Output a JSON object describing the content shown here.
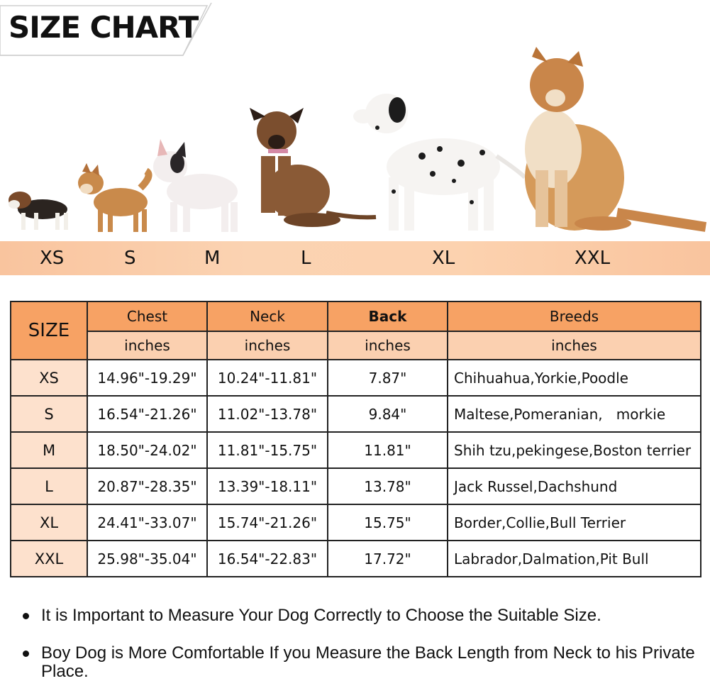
{
  "title": "SIZE CHART",
  "band_sizes": [
    "XS",
    "S",
    "M",
    "L",
    "XL",
    "XXL"
  ],
  "table": {
    "size_header": "SIZE",
    "columns": [
      {
        "label": "Chest",
        "unit": "inches"
      },
      {
        "label": "Neck",
        "unit": "inches"
      },
      {
        "label": "Back",
        "unit": "inches"
      },
      {
        "label": "Breeds",
        "unit": "inches"
      }
    ],
    "rows": [
      {
        "size": "XS",
        "chest": "14.96\"-19.29\"",
        "neck": "10.24\"-11.81\"",
        "back": "7.87\"",
        "breeds": "Chihuahua,Yorkie,Poodle"
      },
      {
        "size": "S",
        "chest": "16.54\"-21.26\"",
        "neck": "11.02\"-13.78\"",
        "back": "9.84\"",
        "breeds": "Maltese,Pomeranian,   morkie"
      },
      {
        "size": "M",
        "chest": "18.50\"-24.02\"",
        "neck": "11.81\"-15.75\"",
        "back": "11.81\"",
        "breeds": "Shih tzu,pekingese,Boston terrier"
      },
      {
        "size": "L",
        "chest": "20.87\"-28.35\"",
        "neck": "13.39\"-18.11\"",
        "back": "13.78\"",
        "breeds": "Jack Russel,Dachshund"
      },
      {
        "size": "XL",
        "chest": "24.41\"-33.07\"",
        "neck": "15.74\"-21.26\"",
        "back": "15.75\"",
        "breeds": "Border,Collie,Bull Terrier"
      },
      {
        "size": "XXL",
        "chest": "25.98\"-35.04\"",
        "neck": "16.54\"-22.83\"",
        "back": "17.72\"",
        "breeds": "Labrador,Dalmation,Pit Bull"
      }
    ]
  },
  "notes": [
    "It is Important to Measure Your Dog Correctly to Choose the Suitable Size.",
    "Boy Dog is More Comfortable If you Measure the Back Length from Neck to his Private Place."
  ],
  "colors": {
    "header_orange": "#f7a264",
    "subheader_peach": "#fbd0b0",
    "size_cell": "#fde1cd",
    "band": "#fbd3b2"
  }
}
